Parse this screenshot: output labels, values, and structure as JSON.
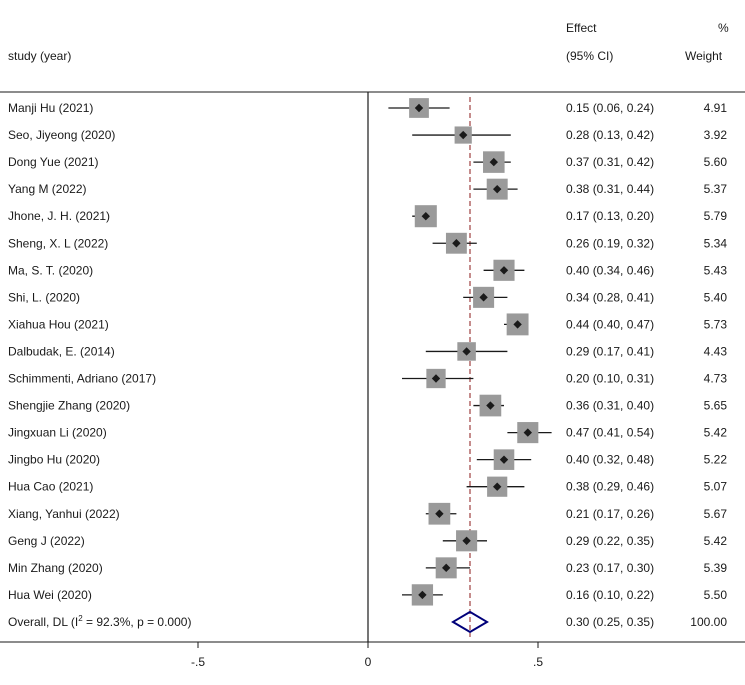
{
  "header": {
    "effect_label": "Effect",
    "pct_label": "%",
    "study_label": "study (year)",
    "ci_label": "(95% CI)",
    "weight_label": "Weight"
  },
  "chart_data": {
    "type": "forest",
    "title": "",
    "xlabel": "",
    "ylabel": "",
    "xlim": [
      -1.1,
      1.1
    ],
    "x_ticks": [
      -0.5,
      0,
      0.5
    ],
    "x_tick_labels": [
      "-.5",
      "0",
      ".5"
    ],
    "null_line": 0,
    "overall_line": 0.3,
    "studies": [
      {
        "label": "Manji Hu (2021)",
        "es": 0.15,
        "lo": 0.06,
        "hi": 0.24,
        "ci_text": "0.15 (0.06, 0.24)",
        "weight": 4.91,
        "weight_text": "4.91"
      },
      {
        "label": "Seo, Jiyeong (2020)",
        "es": 0.28,
        "lo": 0.13,
        "hi": 0.42,
        "ci_text": "0.28 (0.13, 0.42)",
        "weight": 3.92,
        "weight_text": "3.92"
      },
      {
        "label": "Dong Yue (2021)",
        "es": 0.37,
        "lo": 0.31,
        "hi": 0.42,
        "ci_text": "0.37 (0.31, 0.42)",
        "weight": 5.6,
        "weight_text": "5.60"
      },
      {
        "label": "Yang M  (2022)",
        "es": 0.38,
        "lo": 0.31,
        "hi": 0.44,
        "ci_text": "0.38 (0.31, 0.44)",
        "weight": 5.37,
        "weight_text": "5.37"
      },
      {
        "label": "Jhone, J. H. (2021)",
        "es": 0.17,
        "lo": 0.13,
        "hi": 0.2,
        "ci_text": "0.17 (0.13, 0.20)",
        "weight": 5.79,
        "weight_text": "5.79"
      },
      {
        "label": "Sheng, X. L (2022)",
        "es": 0.26,
        "lo": 0.19,
        "hi": 0.32,
        "ci_text": "0.26 (0.19, 0.32)",
        "weight": 5.34,
        "weight_text": "5.34"
      },
      {
        "label": "Ma, S. T. (2020)",
        "es": 0.4,
        "lo": 0.34,
        "hi": 0.46,
        "ci_text": "0.40 (0.34, 0.46)",
        "weight": 5.43,
        "weight_text": "5.43"
      },
      {
        "label": "Shi, L. (2020)",
        "es": 0.34,
        "lo": 0.28,
        "hi": 0.41,
        "ci_text": "0.34 (0.28, 0.41)",
        "weight": 5.4,
        "weight_text": "5.40"
      },
      {
        "label": "Xiahua Hou (2021)",
        "es": 0.44,
        "lo": 0.4,
        "hi": 0.47,
        "ci_text": "0.44 (0.40, 0.47)",
        "weight": 5.73,
        "weight_text": "5.73"
      },
      {
        "label": "Dalbudak, E. (2014)",
        "es": 0.29,
        "lo": 0.17,
        "hi": 0.41,
        "ci_text": "0.29 (0.17, 0.41)",
        "weight": 4.43,
        "weight_text": "4.43"
      },
      {
        "label": "Schimmenti, Adriano (2017)",
        "es": 0.2,
        "lo": 0.1,
        "hi": 0.31,
        "ci_text": "0.20 (0.10, 0.31)",
        "weight": 4.73,
        "weight_text": "4.73"
      },
      {
        "label": "Shengjie Zhang (2020)",
        "es": 0.36,
        "lo": 0.31,
        "hi": 0.4,
        "ci_text": "0.36 (0.31, 0.40)",
        "weight": 5.65,
        "weight_text": "5.65"
      },
      {
        "label": "Jingxuan Li (2020)",
        "es": 0.47,
        "lo": 0.41,
        "hi": 0.54,
        "ci_text": "0.47 (0.41, 0.54)",
        "weight": 5.42,
        "weight_text": "5.42"
      },
      {
        "label": "Jingbo Hu (2020)",
        "es": 0.4,
        "lo": 0.32,
        "hi": 0.48,
        "ci_text": "0.40 (0.32, 0.48)",
        "weight": 5.22,
        "weight_text": "5.22"
      },
      {
        "label": "Hua Cao (2021)",
        "es": 0.38,
        "lo": 0.29,
        "hi": 0.46,
        "ci_text": "0.38 (0.29, 0.46)",
        "weight": 5.07,
        "weight_text": "5.07"
      },
      {
        "label": "Xiang, Yanhui (2022)",
        "es": 0.21,
        "lo": 0.17,
        "hi": 0.26,
        "ci_text": "0.21 (0.17, 0.26)",
        "weight": 5.67,
        "weight_text": "5.67"
      },
      {
        "label": "Geng J (2022)",
        "es": 0.29,
        "lo": 0.22,
        "hi": 0.35,
        "ci_text": "0.29 (0.22, 0.35)",
        "weight": 5.42,
        "weight_text": "5.42"
      },
      {
        "label": "Min Zhang (2020)",
        "es": 0.23,
        "lo": 0.17,
        "hi": 0.3,
        "ci_text": "0.23 (0.17, 0.30)",
        "weight": 5.39,
        "weight_text": "5.39"
      },
      {
        "label": "Hua Wei (2020)",
        "es": 0.16,
        "lo": 0.1,
        "hi": 0.22,
        "ci_text": "0.16 (0.10, 0.22)",
        "weight": 5.5,
        "weight_text": "5.50"
      }
    ],
    "overall": {
      "label_prefix": "Overall, DL (I",
      "label_sup": "2",
      "label_suffix": " = 92.3%, p = 0.000)",
      "es": 0.3,
      "lo": 0.25,
      "hi": 0.35,
      "ci_text": "0.30 (0.25, 0.35)",
      "weight_text": "100.00"
    },
    "colors": {
      "line": "#1a1a1a",
      "box": "#9a9a9a",
      "diamond": "#00007a",
      "overall_line": "#8b1a1a",
      "axis": "#1a1a1a"
    }
  }
}
